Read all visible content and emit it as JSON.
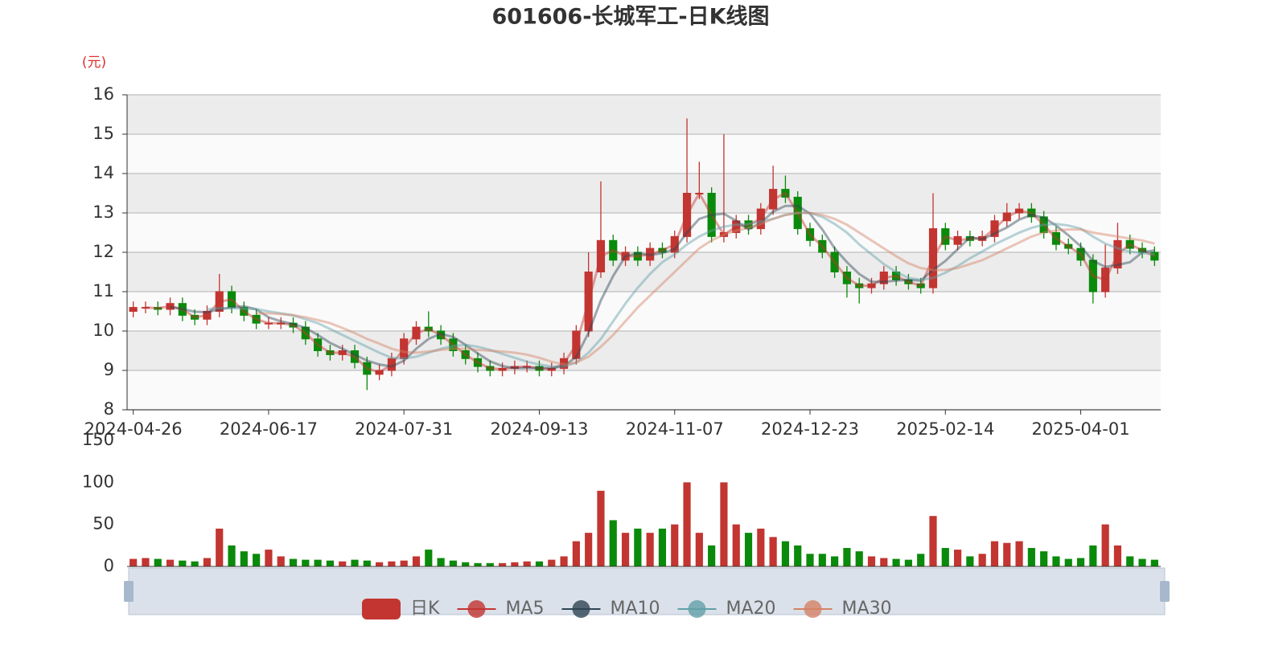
{
  "chart_data": [
    {
      "type": "candlestick",
      "title": "601606-长城军工-日K线图",
      "y_axis_label": "(元)",
      "categories": [
        "2024-04-26",
        null,
        null,
        null,
        null,
        null,
        null,
        null,
        null,
        null,
        null,
        "2024-06-17",
        null,
        null,
        null,
        null,
        null,
        null,
        null,
        null,
        null,
        null,
        "2024-07-31",
        null,
        null,
        null,
        null,
        null,
        null,
        null,
        null,
        null,
        null,
        "2024-09-13",
        null,
        null,
        null,
        null,
        null,
        null,
        null,
        null,
        null,
        null,
        "2024-11-07",
        null,
        null,
        null,
        null,
        null,
        null,
        null,
        null,
        null,
        null,
        "2024-12-23",
        null,
        null,
        null,
        null,
        null,
        null,
        null,
        null,
        null,
        null,
        "2025-02-14",
        null,
        null,
        null,
        null,
        null,
        null,
        null,
        null,
        null,
        null,
        "2025-04-01",
        null,
        null,
        null,
        null,
        null,
        null
      ],
      "ylim": [
        8,
        16
      ],
      "yticks": [
        8,
        9,
        10,
        11,
        12,
        13,
        14,
        15,
        16
      ],
      "grid": true,
      "split_area": true,
      "series": [
        {
          "name": "日K",
          "color": "#c23531",
          "down_color": "#0a8a0a",
          "open": [
            10.5,
            10.6,
            10.6,
            10.55,
            10.7,
            10.4,
            10.3,
            10.5,
            11.0,
            10.6,
            10.4,
            10.2,
            10.2,
            10.2,
            10.1,
            9.8,
            9.5,
            9.4,
            9.5,
            9.2,
            8.9,
            9.0,
            9.3,
            9.8,
            10.1,
            10.0,
            9.8,
            9.5,
            9.3,
            9.1,
            9.0,
            9.05,
            9.1,
            9.1,
            9.0,
            9.05,
            9.3,
            10.0,
            11.5,
            12.3,
            11.8,
            12.0,
            11.8,
            12.1,
            12.0,
            12.4,
            13.5,
            13.5,
            12.4,
            12.5,
            12.8,
            12.6,
            13.1,
            13.6,
            13.4,
            12.6,
            12.3,
            12.0,
            11.5,
            11.2,
            11.1,
            11.2,
            11.5,
            11.3,
            11.2,
            11.1,
            12.6,
            12.2,
            12.4,
            12.3,
            12.4,
            12.8,
            13.0,
            13.1,
            12.9,
            12.5,
            12.2,
            12.1,
            11.8,
            11.0,
            11.6,
            12.3,
            12.1,
            12.0
          ],
          "close": [
            10.6,
            10.6,
            10.55,
            10.7,
            10.4,
            10.3,
            10.5,
            11.0,
            10.6,
            10.4,
            10.2,
            10.2,
            10.2,
            10.1,
            9.8,
            9.5,
            9.4,
            9.5,
            9.2,
            8.9,
            9.0,
            9.3,
            9.8,
            10.1,
            10.0,
            9.8,
            9.5,
            9.3,
            9.1,
            9.0,
            9.05,
            9.1,
            9.1,
            9.0,
            9.05,
            9.3,
            10.0,
            11.5,
            12.3,
            11.8,
            12.0,
            11.8,
            12.1,
            12.0,
            12.4,
            13.5,
            13.5,
            12.4,
            12.5,
            12.8,
            12.6,
            13.1,
            13.6,
            13.4,
            12.6,
            12.3,
            12.0,
            11.5,
            11.2,
            11.1,
            11.2,
            11.5,
            11.3,
            11.2,
            11.1,
            12.6,
            12.2,
            12.4,
            12.3,
            12.4,
            12.8,
            13.0,
            13.1,
            12.9,
            12.5,
            12.2,
            12.1,
            11.8,
            11.0,
            11.6,
            12.3,
            12.1,
            12.0,
            11.8
          ],
          "low": [
            10.35,
            10.45,
            10.4,
            10.4,
            10.25,
            10.15,
            10.15,
            10.35,
            10.45,
            10.25,
            10.05,
            10.05,
            10.05,
            9.95,
            9.65,
            9.35,
            9.25,
            9.25,
            9.05,
            8.5,
            8.75,
            8.85,
            9.15,
            9.65,
            9.85,
            9.65,
            9.35,
            9.15,
            8.95,
            8.85,
            8.85,
            8.9,
            8.95,
            8.85,
            8.85,
            8.9,
            9.15,
            9.85,
            11.35,
            11.65,
            11.65,
            11.65,
            11.65,
            11.85,
            11.85,
            12.25,
            13.35,
            12.25,
            12.25,
            12.35,
            12.45,
            12.45,
            12.95,
            13.25,
            12.45,
            12.15,
            11.85,
            11.35,
            10.85,
            10.7,
            10.95,
            11.05,
            11.15,
            11.05,
            10.95,
            10.95,
            12.05,
            12.05,
            12.15,
            12.15,
            12.25,
            12.65,
            12.85,
            12.75,
            12.35,
            12.05,
            11.95,
            11.65,
            10.7,
            10.85,
            11.45,
            11.95,
            11.85,
            11.65
          ],
          "high": [
            10.75,
            10.75,
            10.75,
            10.85,
            10.85,
            10.55,
            10.65,
            11.45,
            11.15,
            10.75,
            10.55,
            10.35,
            10.35,
            10.35,
            10.25,
            9.95,
            9.65,
            9.65,
            9.65,
            9.35,
            9.15,
            9.45,
            9.95,
            10.25,
            10.5,
            10.15,
            9.95,
            9.65,
            9.45,
            9.25,
            9.2,
            9.25,
            9.25,
            9.25,
            9.2,
            9.45,
            10.15,
            12.0,
            13.8,
            12.45,
            12.15,
            12.15,
            12.25,
            12.25,
            12.55,
            15.4,
            14.3,
            13.65,
            15.0,
            12.95,
            12.95,
            13.25,
            14.2,
            13.95,
            13.55,
            12.75,
            12.45,
            12.15,
            11.65,
            11.35,
            11.35,
            11.65,
            11.65,
            11.45,
            11.35,
            13.5,
            12.75,
            12.55,
            12.55,
            12.55,
            12.95,
            13.25,
            13.25,
            13.25,
            13.05,
            12.65,
            12.35,
            12.25,
            11.95,
            12.2,
            12.75,
            12.45,
            12.25,
            12.15
          ]
        },
        {
          "name": "MA5",
          "color": "#c23531",
          "values": [
            null,
            10.6,
            10.58,
            10.63,
            10.55,
            10.35,
            10.4,
            10.75,
            10.8,
            10.5,
            10.3,
            10.2,
            10.2,
            10.15,
            9.95,
            9.65,
            9.45,
            9.45,
            9.35,
            9.05,
            8.95,
            9.15,
            9.55,
            9.95,
            10.05,
            9.9,
            9.65,
            9.4,
            9.2,
            9.05,
            9.03,
            9.08,
            9.1,
            9.05,
            9.03,
            9.18,
            9.65,
            10.75,
            11.9,
            12.05,
            11.9,
            11.9,
            11.95,
            12.05,
            12.2,
            12.95,
            13.5,
            12.95,
            12.45,
            12.65,
            12.7,
            12.85,
            13.35,
            13.5,
            13.0,
            12.45,
            12.15,
            11.75,
            11.35,
            11.15,
            11.15,
            11.35,
            11.4,
            11.25,
            11.15,
            11.85,
            12.4,
            12.3,
            12.35,
            12.35,
            12.6,
            12.9,
            13.05,
            13.0,
            12.7,
            12.35,
            12.15,
            11.95,
            11.4,
            11.3,
            11.95,
            12.2,
            12.05,
            11.9
          ]
        },
        {
          "name": "MA10",
          "color": "#2f4554",
          "values": [
            null,
            null,
            null,
            10.61,
            10.56,
            10.49,
            10.48,
            10.55,
            10.6,
            10.63,
            10.55,
            10.35,
            10.25,
            10.18,
            10.08,
            9.9,
            9.7,
            9.55,
            9.4,
            9.25,
            9.15,
            9.1,
            9.25,
            9.55,
            9.8,
            9.93,
            9.85,
            9.65,
            9.43,
            9.23,
            9.11,
            9.06,
            9.06,
            9.06,
            9.06,
            9.11,
            9.34,
            9.96,
            10.78,
            11.4,
            11.9,
            11.98,
            11.93,
            11.98,
            12.08,
            12.5,
            12.85,
            12.95,
            12.98,
            12.8,
            12.58,
            12.75,
            13.03,
            13.18,
            13.18,
            12.98,
            12.58,
            12.1,
            11.75,
            11.45,
            11.25,
            11.25,
            11.28,
            11.3,
            11.28,
            11.55,
            11.78,
            12.08,
            12.38,
            12.33,
            12.48,
            12.63,
            12.83,
            12.95,
            12.88,
            12.68,
            12.43,
            12.15,
            11.78,
            11.63,
            11.68,
            11.75,
            12.0,
            12.05
          ]
        },
        {
          "name": "MA20",
          "color": "#61a0a8",
          "values": [
            null,
            null,
            null,
            null,
            null,
            null,
            10.55,
            10.58,
            10.58,
            10.57,
            10.56,
            10.5,
            10.45,
            10.4,
            10.3,
            10.2,
            10.05,
            9.9,
            9.75,
            9.6,
            9.45,
            9.32,
            9.3,
            9.35,
            9.45,
            9.55,
            9.62,
            9.65,
            9.6,
            9.52,
            9.42,
            9.32,
            9.22,
            9.15,
            9.1,
            9.1,
            9.2,
            9.45,
            9.8,
            10.25,
            10.7,
            11.1,
            11.45,
            11.75,
            11.95,
            12.2,
            12.4,
            12.55,
            12.65,
            12.7,
            12.72,
            12.78,
            12.85,
            12.95,
            13.0,
            13.0,
            12.9,
            12.72,
            12.5,
            12.2,
            11.95,
            11.7,
            11.5,
            11.35,
            11.3,
            11.35,
            11.48,
            11.65,
            11.85,
            12.02,
            12.2,
            12.35,
            12.5,
            12.62,
            12.7,
            12.72,
            12.68,
            12.6,
            12.4,
            12.22,
            12.1,
            12.02,
            11.98,
            11.95
          ]
        },
        {
          "name": "MA30",
          "color": "#d48265",
          "values": [
            null,
            null,
            null,
            null,
            null,
            null,
            null,
            null,
            null,
            null,
            10.45,
            10.45,
            10.43,
            10.4,
            10.35,
            10.28,
            10.2,
            10.08,
            9.95,
            9.8,
            9.68,
            9.55,
            9.47,
            9.45,
            9.48,
            9.52,
            9.55,
            9.55,
            9.52,
            9.5,
            9.48,
            9.45,
            9.4,
            9.32,
            9.22,
            9.15,
            9.2,
            9.35,
            9.6,
            9.9,
            10.25,
            10.6,
            10.9,
            11.2,
            11.5,
            11.8,
            12.1,
            12.3,
            12.45,
            12.55,
            12.62,
            12.72,
            12.85,
            12.95,
            13.0,
            13.0,
            12.95,
            12.85,
            12.7,
            12.5,
            12.3,
            12.1,
            11.9,
            11.72,
            11.6,
            11.55,
            11.55,
            11.6,
            11.7,
            11.8,
            11.95,
            12.1,
            12.25,
            12.4,
            12.5,
            12.55,
            12.58,
            12.58,
            12.5,
            12.45,
            12.4,
            12.35,
            12.3,
            12.22
          ]
        }
      ]
    },
    {
      "type": "bar",
      "ylim": [
        0,
        150
      ],
      "yticks": [
        0,
        50,
        100,
        150
      ],
      "values": [
        9,
        10,
        9,
        8,
        7,
        6,
        10,
        45,
        25,
        18,
        15,
        20,
        12,
        9,
        8,
        8,
        7,
        6,
        8,
        7,
        5,
        6,
        7,
        12,
        20,
        10,
        7,
        5,
        4,
        4,
        4,
        5,
        6,
        6,
        8,
        12,
        30,
        40,
        90,
        55,
        40,
        45,
        40,
        45,
        50,
        100,
        40,
        25,
        100,
        50,
        40,
        45,
        35,
        30,
        25,
        15,
        15,
        12,
        22,
        18,
        12,
        10,
        9,
        8,
        15,
        60,
        22,
        20,
        12,
        15,
        30,
        28,
        30,
        22,
        18,
        12,
        9,
        10,
        25,
        50,
        25,
        12,
        9,
        8
      ]
    }
  ]
}
